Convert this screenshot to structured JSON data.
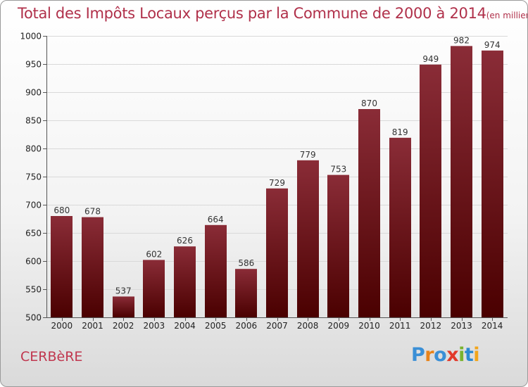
{
  "header": {
    "title": "Total des Impôts Locaux perçus par la Commune de 2000 à 2014",
    "unit": "(en milliers d'€)"
  },
  "footer": {
    "commune": "CERBèRE",
    "brand": "Proxiti"
  },
  "colors": {
    "bar_top": "#8a2c37",
    "bar_bottom": "#4a0000",
    "title": "#b0304a",
    "grid": "#d9d9d9",
    "brand_letters": [
      "#3a8fd6",
      "#e8831a",
      "#3a8fd6",
      "#e23a2b",
      "#7ab32e",
      "#2c8ad1",
      "#f2a51a"
    ]
  },
  "chart_data": {
    "type": "bar",
    "title": "Total des Impôts Locaux perçus par la Commune de 2000 à 2014",
    "xlabel": "",
    "ylabel": "",
    "unit": "en milliers d'€",
    "categories": [
      "2000",
      "2001",
      "2002",
      "2003",
      "2004",
      "2005",
      "2006",
      "2007",
      "2008",
      "2009",
      "2010",
      "2011",
      "2012",
      "2013",
      "2014"
    ],
    "values": [
      680,
      678,
      537,
      602,
      626,
      664,
      586,
      729,
      779,
      753,
      870,
      819,
      949,
      982,
      974
    ],
    "ylim": [
      500,
      1000
    ],
    "yticks": [
      500,
      550,
      600,
      650,
      700,
      750,
      800,
      850,
      900,
      950,
      1000
    ],
    "grid": true
  }
}
